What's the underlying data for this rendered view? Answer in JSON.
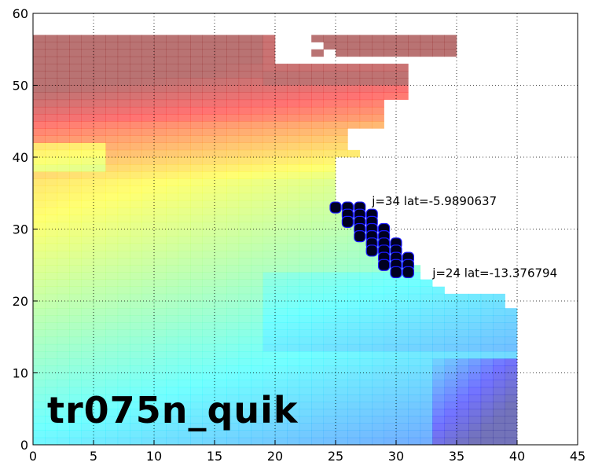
{
  "chart_data": {
    "type": "heatmap",
    "title": "",
    "xlabel": "",
    "ylabel": "",
    "xlim": [
      0,
      45
    ],
    "ylim": [
      0,
      60
    ],
    "x_ticks": [
      "0",
      "5",
      "10",
      "15",
      "20",
      "25",
      "30",
      "35",
      "40",
      "45"
    ],
    "y_ticks": [
      "0",
      "10",
      "20",
      "30",
      "40",
      "50",
      "60"
    ],
    "grid": true,
    "colormap": "jet (semi-transparent)",
    "highlight_points": [
      [
        25,
        33
      ],
      [
        26,
        33
      ],
      [
        27,
        33
      ],
      [
        26,
        32
      ],
      [
        27,
        32
      ],
      [
        28,
        32
      ],
      [
        26,
        31
      ],
      [
        27,
        31
      ],
      [
        28,
        31
      ],
      [
        27,
        30
      ],
      [
        28,
        30
      ],
      [
        29,
        30
      ],
      [
        27,
        29
      ],
      [
        28,
        29
      ],
      [
        29,
        29
      ],
      [
        28,
        28
      ],
      [
        29,
        28
      ],
      [
        30,
        28
      ],
      [
        28,
        27
      ],
      [
        29,
        27
      ],
      [
        30,
        27
      ],
      [
        29,
        26
      ],
      [
        30,
        26
      ],
      [
        31,
        26
      ],
      [
        29,
        25
      ],
      [
        30,
        25
      ],
      [
        31,
        25
      ],
      [
        30,
        24
      ],
      [
        31,
        24
      ]
    ],
    "annotations": [
      {
        "text": "j=34 lat=-5.9890637",
        "x": 28,
        "y": 34
      },
      {
        "text": "j=24 lat=-13.376794",
        "x": 33,
        "y": 24
      }
    ]
  },
  "watermark": "tr075n_quik"
}
